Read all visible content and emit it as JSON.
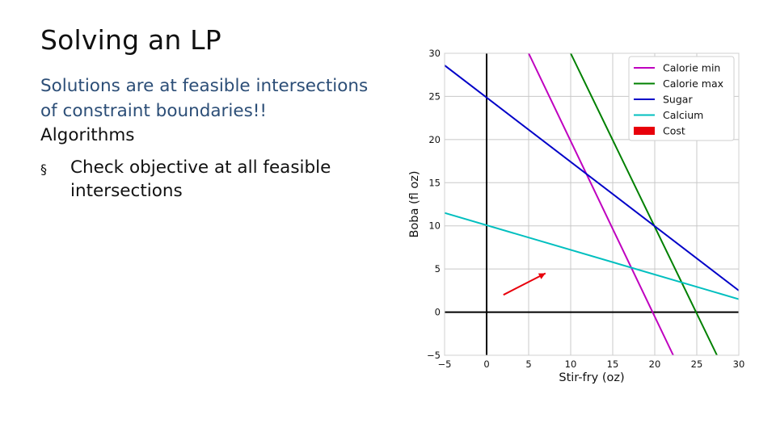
{
  "slide": {
    "title": "Solving an LP",
    "line1": "Solutions are at feasible intersections",
    "line2": "of constraint boundaries!!",
    "heading": "Algorithms",
    "bullet_mark": "§",
    "bullet": "Check objective at all feasible intersections"
  },
  "chart_data": {
    "type": "line",
    "xlabel": "Stir-fry (oz)",
    "ylabel": "Boba (fl oz)",
    "xlim": [
      -5,
      30
    ],
    "ylim": [
      -5,
      30
    ],
    "x_ticks": [
      "−5",
      "0",
      "5",
      "10",
      "15",
      "20",
      "25",
      "30"
    ],
    "y_ticks": [
      "−5",
      "0",
      "5",
      "10",
      "15",
      "20",
      "25",
      "30"
    ],
    "grid": true,
    "legend_position": "top-right",
    "series": [
      {
        "name": "Calorie min",
        "color": "#bf00bf",
        "x": [
          5,
          22.2
        ],
        "y": [
          30,
          -5
        ]
      },
      {
        "name": "Calorie max",
        "color": "#008000",
        "x": [
          10,
          27.4
        ],
        "y": [
          30,
          -5
        ]
      },
      {
        "name": "Sugar",
        "color": "#0000c8",
        "x": [
          -5,
          30
        ],
        "y": [
          28.6,
          2.5
        ]
      },
      {
        "name": "Calcium",
        "color": "#00bfbf",
        "x": [
          -5,
          30
        ],
        "y": [
          11.5,
          1.5
        ]
      },
      {
        "name": "Cost",
        "color": "#e8000b",
        "kind": "arrow",
        "x": [
          2,
          7
        ],
        "y": [
          2,
          4.5
        ]
      }
    ]
  }
}
